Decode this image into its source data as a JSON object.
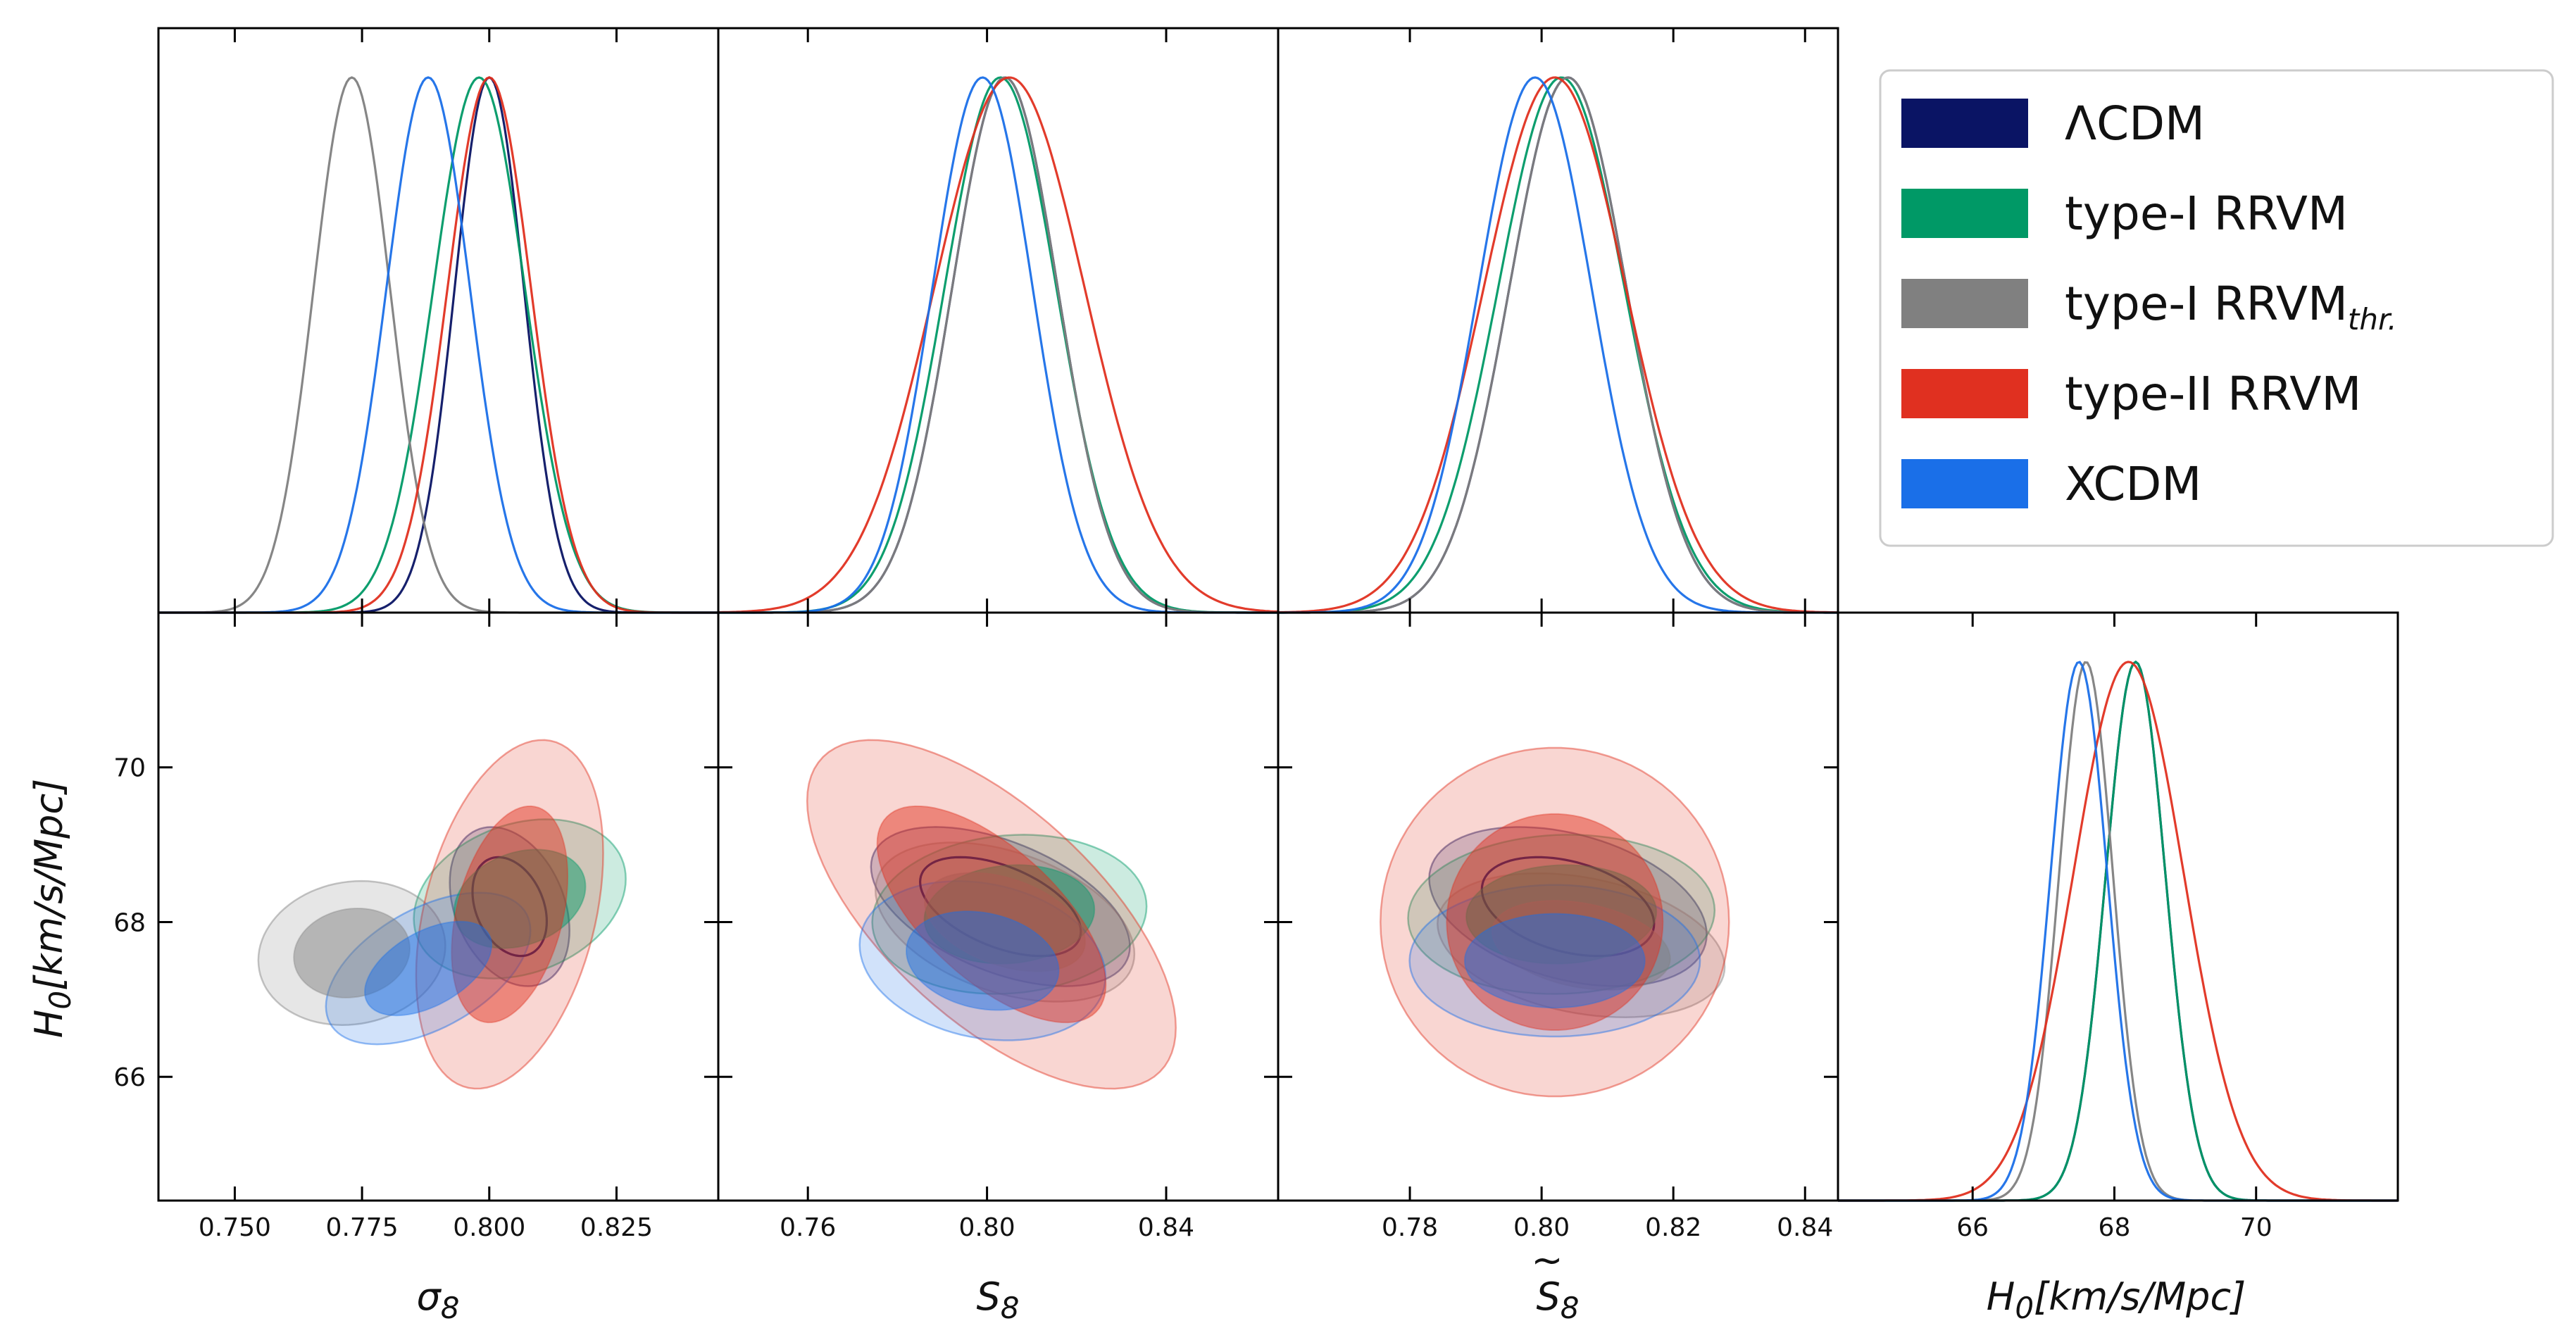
{
  "chart_data": {
    "type": "triangle-corner-plot",
    "parameters": [
      {
        "id": "sigma8",
        "label_main": "σ",
        "label_sub": "8",
        "tilde": false,
        "range": [
          0.735,
          0.845
        ],
        "ticks": [
          0.75,
          0.775,
          0.8,
          0.825
        ],
        "tick_labels": [
          "0.750",
          "0.775",
          "0.800",
          "0.825"
        ]
      },
      {
        "id": "S8",
        "label_main": "S",
        "label_sub": "8",
        "tilde": false,
        "range": [
          0.74,
          0.865
        ],
        "ticks": [
          0.76,
          0.8,
          0.84
        ],
        "tick_labels": [
          "0.76",
          "0.80",
          "0.84"
        ]
      },
      {
        "id": "S8tilde",
        "label_main": "S",
        "label_sub": "8",
        "tilde": true,
        "range": [
          0.76,
          0.845
        ],
        "ticks": [
          0.78,
          0.8,
          0.82,
          0.84
        ],
        "tick_labels": [
          "0.78",
          "0.80",
          "0.82",
          "0.84"
        ]
      },
      {
        "id": "H0",
        "label_main": "H",
        "label_sub": "0",
        "label_rest": "[km/s/Mpc]",
        "range": [
          64.1,
          72.0
        ],
        "ticks": [
          66,
          68,
          70
        ],
        "tick_labels": [
          "66",
          "68",
          "70"
        ]
      }
    ],
    "y_axis": {
      "param": "H0",
      "range": [
        64.4,
        72.0
      ],
      "ticks": [
        66,
        68,
        70
      ],
      "tick_labels": [
        "66",
        "68",
        "70"
      ],
      "label_main": "H",
      "label_sub": "0",
      "label_rest": "[km/s/Mpc]"
    },
    "series": [
      {
        "id": "lcdm",
        "name": "ΛCDM",
        "name_sub": "",
        "color": "#0a1464",
        "marginals": {
          "sigma8": {
            "mean": 0.8,
            "sd": 0.0068
          },
          "S8": {
            "mean": 0.804,
            "sd": 0.0118
          },
          "S8tilde": {
            "mean": 0.804,
            "sd": 0.0089
          },
          "H0": {
            "mean": 68.3,
            "sd": 0.42
          }
        },
        "contours": {
          "sigma8": {
            "mx": 0.804,
            "my": 68.2,
            "sx": 0.0048,
            "sy": 0.42,
            "rho": -0.3
          },
          "S8": {
            "mx": 0.803,
            "my": 68.2,
            "sx": 0.0118,
            "sy": 0.42,
            "rho": -0.5
          },
          "S8tilde": {
            "mx": 0.804,
            "my": 68.2,
            "sx": 0.0086,
            "sy": 0.42,
            "rho": -0.35
          }
        }
      },
      {
        "id": "typeI",
        "name": "type-I RRVM",
        "name_sub": "",
        "color": "#009966",
        "marginals": {
          "sigma8": {
            "mean": 0.798,
            "sd": 0.009
          },
          "S8": {
            "mean": 0.803,
            "sd": 0.0125
          },
          "S8tilde": {
            "mean": 0.803,
            "sd": 0.0096
          },
          "H0": {
            "mean": 68.3,
            "sd": 0.42
          }
        },
        "contours": {
          "sigma8": {
            "mx": 0.806,
            "my": 68.3,
            "sx": 0.0085,
            "sy": 0.42,
            "rho": 0.25
          },
          "S8": {
            "mx": 0.805,
            "my": 68.1,
            "sx": 0.0125,
            "sy": 0.42,
            "rho": 0.1
          },
          "S8tilde": {
            "mx": 0.803,
            "my": 68.1,
            "sx": 0.0095,
            "sy": 0.42,
            "rho": 0.05
          }
        }
      },
      {
        "id": "typeIthr",
        "name": "type-I RRVM",
        "name_sub": "thr.",
        "color": "#808080",
        "marginals": {
          "sigma8": {
            "mean": 0.773,
            "sd": 0.0075
          },
          "S8": {
            "mean": 0.804,
            "sd": 0.0118
          },
          "S8tilde": {
            "mean": 0.804,
            "sd": 0.0089
          },
          "H0": {
            "mean": 67.6,
            "sd": 0.38
          }
        },
        "contours": {
          "sigma8": {
            "mx": 0.773,
            "my": 67.6,
            "sx": 0.0075,
            "sy": 0.38,
            "rho": 0.1
          },
          "S8": {
            "mx": 0.804,
            "my": 68.0,
            "sx": 0.0118,
            "sy": 0.42,
            "rho": -0.4
          },
          "S8tilde": {
            "mx": 0.806,
            "my": 67.7,
            "sx": 0.0089,
            "sy": 0.38,
            "rho": -0.3
          }
        }
      },
      {
        "id": "typeII",
        "name": "type-II RRVM",
        "name_sub": "",
        "color": "#e03020",
        "marginals": {
          "sigma8": {
            "mean": 0.8,
            "sd": 0.0082
          },
          "S8": {
            "mean": 0.805,
            "sd": 0.0168
          },
          "S8tilde": {
            "mean": 0.802,
            "sd": 0.0108
          },
          "H0": {
            "mean": 68.2,
            "sd": 0.78
          }
        },
        "contours": {
          "sigma8": {
            "mx": 0.804,
            "my": 68.1,
            "sx": 0.0075,
            "sy": 0.92,
            "rho": 0.35
          },
          "S8": {
            "mx": 0.801,
            "my": 68.1,
            "sx": 0.0168,
            "sy": 0.92,
            "rho": -0.65
          },
          "S8tilde": {
            "mx": 0.802,
            "my": 68.0,
            "sx": 0.0108,
            "sy": 0.92,
            "rho": 0.0
          }
        }
      },
      {
        "id": "xcdm",
        "name": "XCDM",
        "name_sub": "",
        "color": "#1a6fe8",
        "marginals": {
          "sigma8": {
            "mean": 0.788,
            "sd": 0.0082
          },
          "S8": {
            "mean": 0.799,
            "sd": 0.0112
          },
          "S8tilde": {
            "mean": 0.799,
            "sd": 0.0086
          },
          "H0": {
            "mean": 67.5,
            "sd": 0.4
          }
        },
        "contours": {
          "sigma8": {
            "mx": 0.788,
            "my": 67.4,
            "sx": 0.0082,
            "sy": 0.4,
            "rho": 0.5
          },
          "S8": {
            "mx": 0.799,
            "my": 67.5,
            "sx": 0.0112,
            "sy": 0.42,
            "rho": -0.2
          },
          "S8tilde": {
            "mx": 0.802,
            "my": 67.5,
            "sx": 0.009,
            "sy": 0.4,
            "rho": 0.0
          }
        }
      }
    ],
    "legend": {
      "position": "top-right"
    }
  }
}
